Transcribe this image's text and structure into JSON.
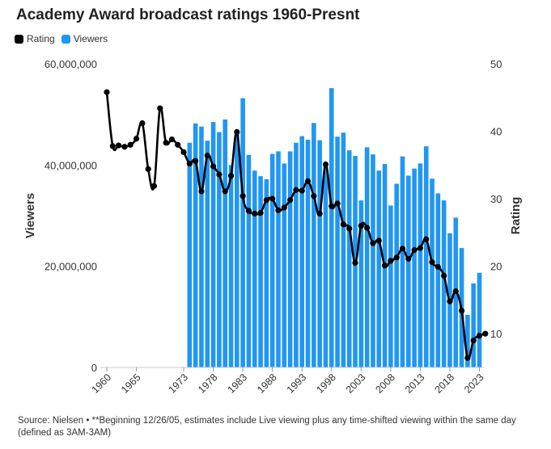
{
  "title": "Academy Award broadcast ratings 1960-Presnt",
  "legend": {
    "rating_label": "Rating",
    "viewers_label": "Viewers"
  },
  "colors": {
    "rating": "#000000",
    "viewers": "#2196f3"
  },
  "footer": {
    "line1": "Source: Nielsen • **Beginning 12/26/05, estimates include Live viewing plus any time-shifted viewing within the same day",
    "line2": "(defined as 3AM-3AM)"
  },
  "chart_data": {
    "type": "bar+line",
    "title": "Academy Award broadcast ratings 1960-Presnt",
    "x": [
      1960,
      2024
    ],
    "xticks": [
      "1960",
      "1965",
      "1973",
      "1978",
      "1983",
      "1988",
      "1993",
      "1998",
      "2003",
      "2008",
      "2013",
      "2018",
      "2023"
    ],
    "y_left": {
      "label": "Viewers",
      "ylim": [
        0,
        60000000
      ],
      "ticks": [
        "0",
        "20,000,000",
        "40,000,000",
        "60,000,000"
      ]
    },
    "y_right": {
      "label": "Rating",
      "ylim": [
        5,
        50
      ],
      "ticks": [
        "10",
        "20",
        "30",
        "40",
        "50"
      ]
    },
    "series": [
      {
        "name": "Viewers",
        "kind": "bar",
        "axis": "left",
        "x": [
          1974,
          1975,
          1976,
          1977,
          1978,
          1979,
          1980,
          1981,
          1982,
          1983,
          1984,
          1985,
          1986,
          1987,
          1988,
          1989,
          1990,
          1991,
          1992,
          1993,
          1994,
          1995,
          1996,
          1997,
          1998,
          1999,
          2000,
          2001,
          2002,
          2003,
          2004,
          2005,
          2006,
          2007,
          2008,
          2009,
          2010,
          2011,
          2012,
          2013,
          2014,
          2015,
          2016,
          2017,
          2018,
          2019,
          2020,
          2021,
          2022,
          2023
        ],
        "values": [
          44400000,
          48200000,
          47600000,
          44800000,
          48500000,
          46500000,
          49000000,
          40000000,
          46200000,
          53200000,
          42000000,
          38900000,
          37800000,
          37200000,
          42200000,
          42700000,
          40300000,
          42700000,
          44400000,
          45700000,
          45000000,
          48300000,
          44900000,
          40100000,
          55200000,
          45600000,
          46400000,
          42900000,
          41800000,
          33000000,
          43500000,
          42100000,
          38900000,
          40200000,
          32000000,
          36300000,
          41700000,
          37900000,
          39300000,
          40300000,
          43700000,
          37300000,
          34400000,
          33000000,
          26500000,
          29600000,
          23600000,
          10400000,
          16600000,
          18700000
        ]
      },
      {
        "name": "Rating",
        "kind": "line",
        "axis": "right",
        "x": [
          1960,
          1961,
          1962,
          1963,
          1964,
          1965,
          1966,
          1967,
          1968,
          1969,
          1970,
          1971,
          1972,
          1973,
          1974,
          1975,
          1976,
          1977,
          1978,
          1979,
          1980,
          1981,
          1982,
          1983,
          1984,
          1985,
          1986,
          1987,
          1988,
          1989,
          1990,
          1991,
          1992,
          1993,
          1994,
          1995,
          1996,
          1997,
          1998,
          1999,
          2000,
          2001,
          2002,
          2003,
          2004,
          2005,
          2006,
          2007,
          2008,
          2009,
          2010,
          2011,
          2012,
          2013,
          2014,
          2015,
          2016,
          2017,
          2018,
          2019,
          2020,
          2021,
          2022,
          2023,
          2024
        ],
        "values": [
          45.8,
          37.8,
          37.9,
          37.7,
          38.0,
          38.9,
          41.2,
          34.4,
          31.9,
          43.4,
          38.3,
          38.8,
          38.0,
          36.9,
          35.2,
          35.6,
          31.1,
          36.4,
          34.8,
          33.6,
          31.1,
          33.4,
          39.9,
          30.4,
          28.2,
          27.8,
          27.9,
          29.8,
          30.0,
          28.3,
          28.7,
          29.8,
          31.3,
          31.2,
          32.6,
          30.4,
          27.8,
          35.1,
          28.9,
          29.3,
          26.2,
          25.6,
          20.5,
          26.0,
          25.7,
          23.4,
          23.8,
          20.1,
          20.8,
          21.3,
          22.6,
          21.1,
          22.4,
          22.7,
          24.0,
          20.6,
          19.9,
          18.6,
          14.8,
          16.3,
          13.4,
          6.4,
          9.0,
          9.7,
          10.0
        ]
      }
    ]
  }
}
